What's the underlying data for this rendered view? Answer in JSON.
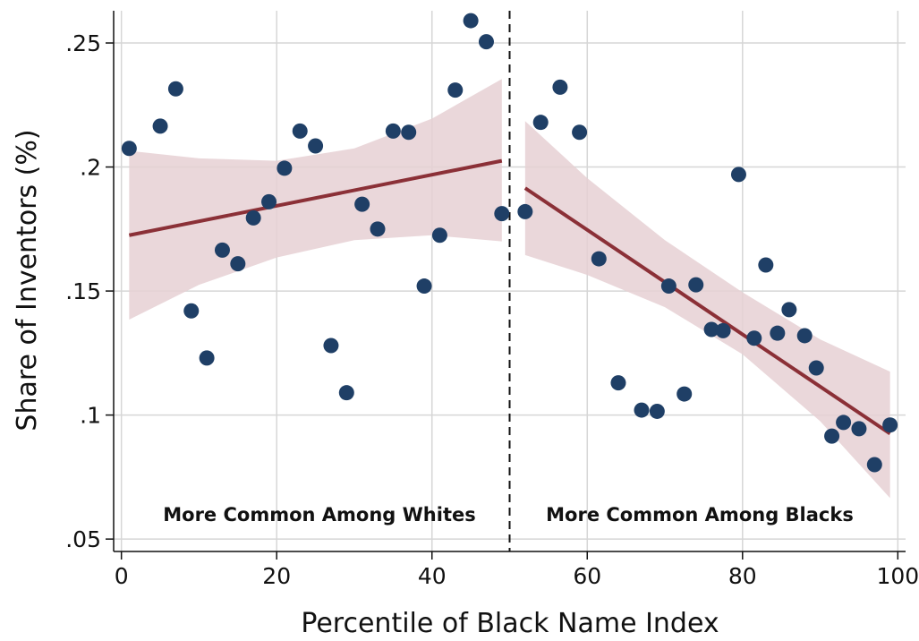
{
  "chart_data": {
    "type": "scatter",
    "title": "",
    "xlabel": "Percentile of Black Name Index",
    "ylabel": "Share of Inventors (%)",
    "xlim": [
      -1,
      101
    ],
    "ylim": [
      0.045,
      0.263
    ],
    "xticks": [
      0,
      20,
      40,
      60,
      80,
      100
    ],
    "xtick_labels": [
      "0",
      "20",
      "40",
      "60",
      "80",
      "100"
    ],
    "yticks": [
      0.05,
      0.1,
      0.15,
      0.2,
      0.25
    ],
    "ytick_labels": [
      ".05",
      ".1",
      ".15",
      ".2",
      ".25"
    ],
    "grid": true,
    "cutoff_x": 50,
    "annotations": [
      {
        "text": "More Common Among Whites",
        "x": 25,
        "y": 0.06
      },
      {
        "text": "More Common Among Blacks",
        "x": 75,
        "y": 0.06
      }
    ],
    "colors": {
      "points": "#1f3f66",
      "fit": "#8b3037",
      "ci": "#e6d0d3",
      "grid": "#d6d6d6",
      "cutoff": "#111111"
    },
    "points": [
      {
        "x": 1,
        "y": 0.2075
      },
      {
        "x": 5,
        "y": 0.2165
      },
      {
        "x": 7,
        "y": 0.2315
      },
      {
        "x": 9,
        "y": 0.142
      },
      {
        "x": 11,
        "y": 0.123
      },
      {
        "x": 13,
        "y": 0.1665
      },
      {
        "x": 15,
        "y": 0.161
      },
      {
        "x": 17,
        "y": 0.1795
      },
      {
        "x": 19,
        "y": 0.186
      },
      {
        "x": 21,
        "y": 0.1995
      },
      {
        "x": 23,
        "y": 0.2145
      },
      {
        "x": 25,
        "y": 0.2085
      },
      {
        "x": 27,
        "y": 0.128
      },
      {
        "x": 29,
        "y": 0.109
      },
      {
        "x": 31,
        "y": 0.185
      },
      {
        "x": 33,
        "y": 0.175
      },
      {
        "x": 35,
        "y": 0.2145
      },
      {
        "x": 37,
        "y": 0.214
      },
      {
        "x": 39,
        "y": 0.152
      },
      {
        "x": 41,
        "y": 0.1725
      },
      {
        "x": 43,
        "y": 0.231
      },
      {
        "x": 45,
        "y": 0.259
      },
      {
        "x": 47,
        "y": 0.2505
      },
      {
        "x": 49,
        "y": 0.1812
      },
      {
        "x": 52,
        "y": 0.182
      },
      {
        "x": 54,
        "y": 0.218
      },
      {
        "x": 56.5,
        "y": 0.2322
      },
      {
        "x": 59,
        "y": 0.214
      },
      {
        "x": 61.5,
        "y": 0.163
      },
      {
        "x": 64,
        "y": 0.113
      },
      {
        "x": 67,
        "y": 0.102
      },
      {
        "x": 69,
        "y": 0.1015
      },
      {
        "x": 70.5,
        "y": 0.152
      },
      {
        "x": 72.5,
        "y": 0.1085
      },
      {
        "x": 74,
        "y": 0.1525
      },
      {
        "x": 76,
        "y": 0.1345
      },
      {
        "x": 77.5,
        "y": 0.134
      },
      {
        "x": 79.5,
        "y": 0.197
      },
      {
        "x": 81.5,
        "y": 0.131
      },
      {
        "x": 83,
        "y": 0.1605
      },
      {
        "x": 84.5,
        "y": 0.133
      },
      {
        "x": 86,
        "y": 0.1425
      },
      {
        "x": 88,
        "y": 0.132
      },
      {
        "x": 89.5,
        "y": 0.119
      },
      {
        "x": 91.5,
        "y": 0.0915
      },
      {
        "x": 93,
        "y": 0.097
      },
      {
        "x": 95,
        "y": 0.0945
      },
      {
        "x": 97,
        "y": 0.08
      },
      {
        "x": 99,
        "y": 0.096
      }
    ],
    "fits": [
      {
        "segment": "left",
        "line": [
          {
            "x": 1,
            "y": 0.1725
          },
          {
            "x": 49,
            "y": 0.2025
          }
        ],
        "ci_upper": [
          {
            "x": 1,
            "y": 0.2065
          },
          {
            "x": 10,
            "y": 0.2035
          },
          {
            "x": 20,
            "y": 0.2025
          },
          {
            "x": 30,
            "y": 0.2075
          },
          {
            "x": 40,
            "y": 0.2195
          },
          {
            "x": 49,
            "y": 0.2355
          }
        ],
        "ci_lower": [
          {
            "x": 1,
            "y": 0.1385
          },
          {
            "x": 10,
            "y": 0.1525
          },
          {
            "x": 20,
            "y": 0.1635
          },
          {
            "x": 30,
            "y": 0.1705
          },
          {
            "x": 40,
            "y": 0.1725
          },
          {
            "x": 49,
            "y": 0.17
          }
        ]
      },
      {
        "segment": "right",
        "line": [
          {
            "x": 52,
            "y": 0.1915
          },
          {
            "x": 99,
            "y": 0.0925
          }
        ],
        "ci_upper": [
          {
            "x": 52,
            "y": 0.2185
          },
          {
            "x": 60,
            "y": 0.1955
          },
          {
            "x": 70,
            "y": 0.1705
          },
          {
            "x": 80,
            "y": 0.1495
          },
          {
            "x": 90,
            "y": 0.1305
          },
          {
            "x": 99,
            "y": 0.1175
          }
        ],
        "ci_lower": [
          {
            "x": 52,
            "y": 0.1645
          },
          {
            "x": 60,
            "y": 0.1565
          },
          {
            "x": 70,
            "y": 0.1435
          },
          {
            "x": 80,
            "y": 0.1245
          },
          {
            "x": 90,
            "y": 0.0975
          },
          {
            "x": 99,
            "y": 0.0665
          }
        ]
      }
    ]
  }
}
